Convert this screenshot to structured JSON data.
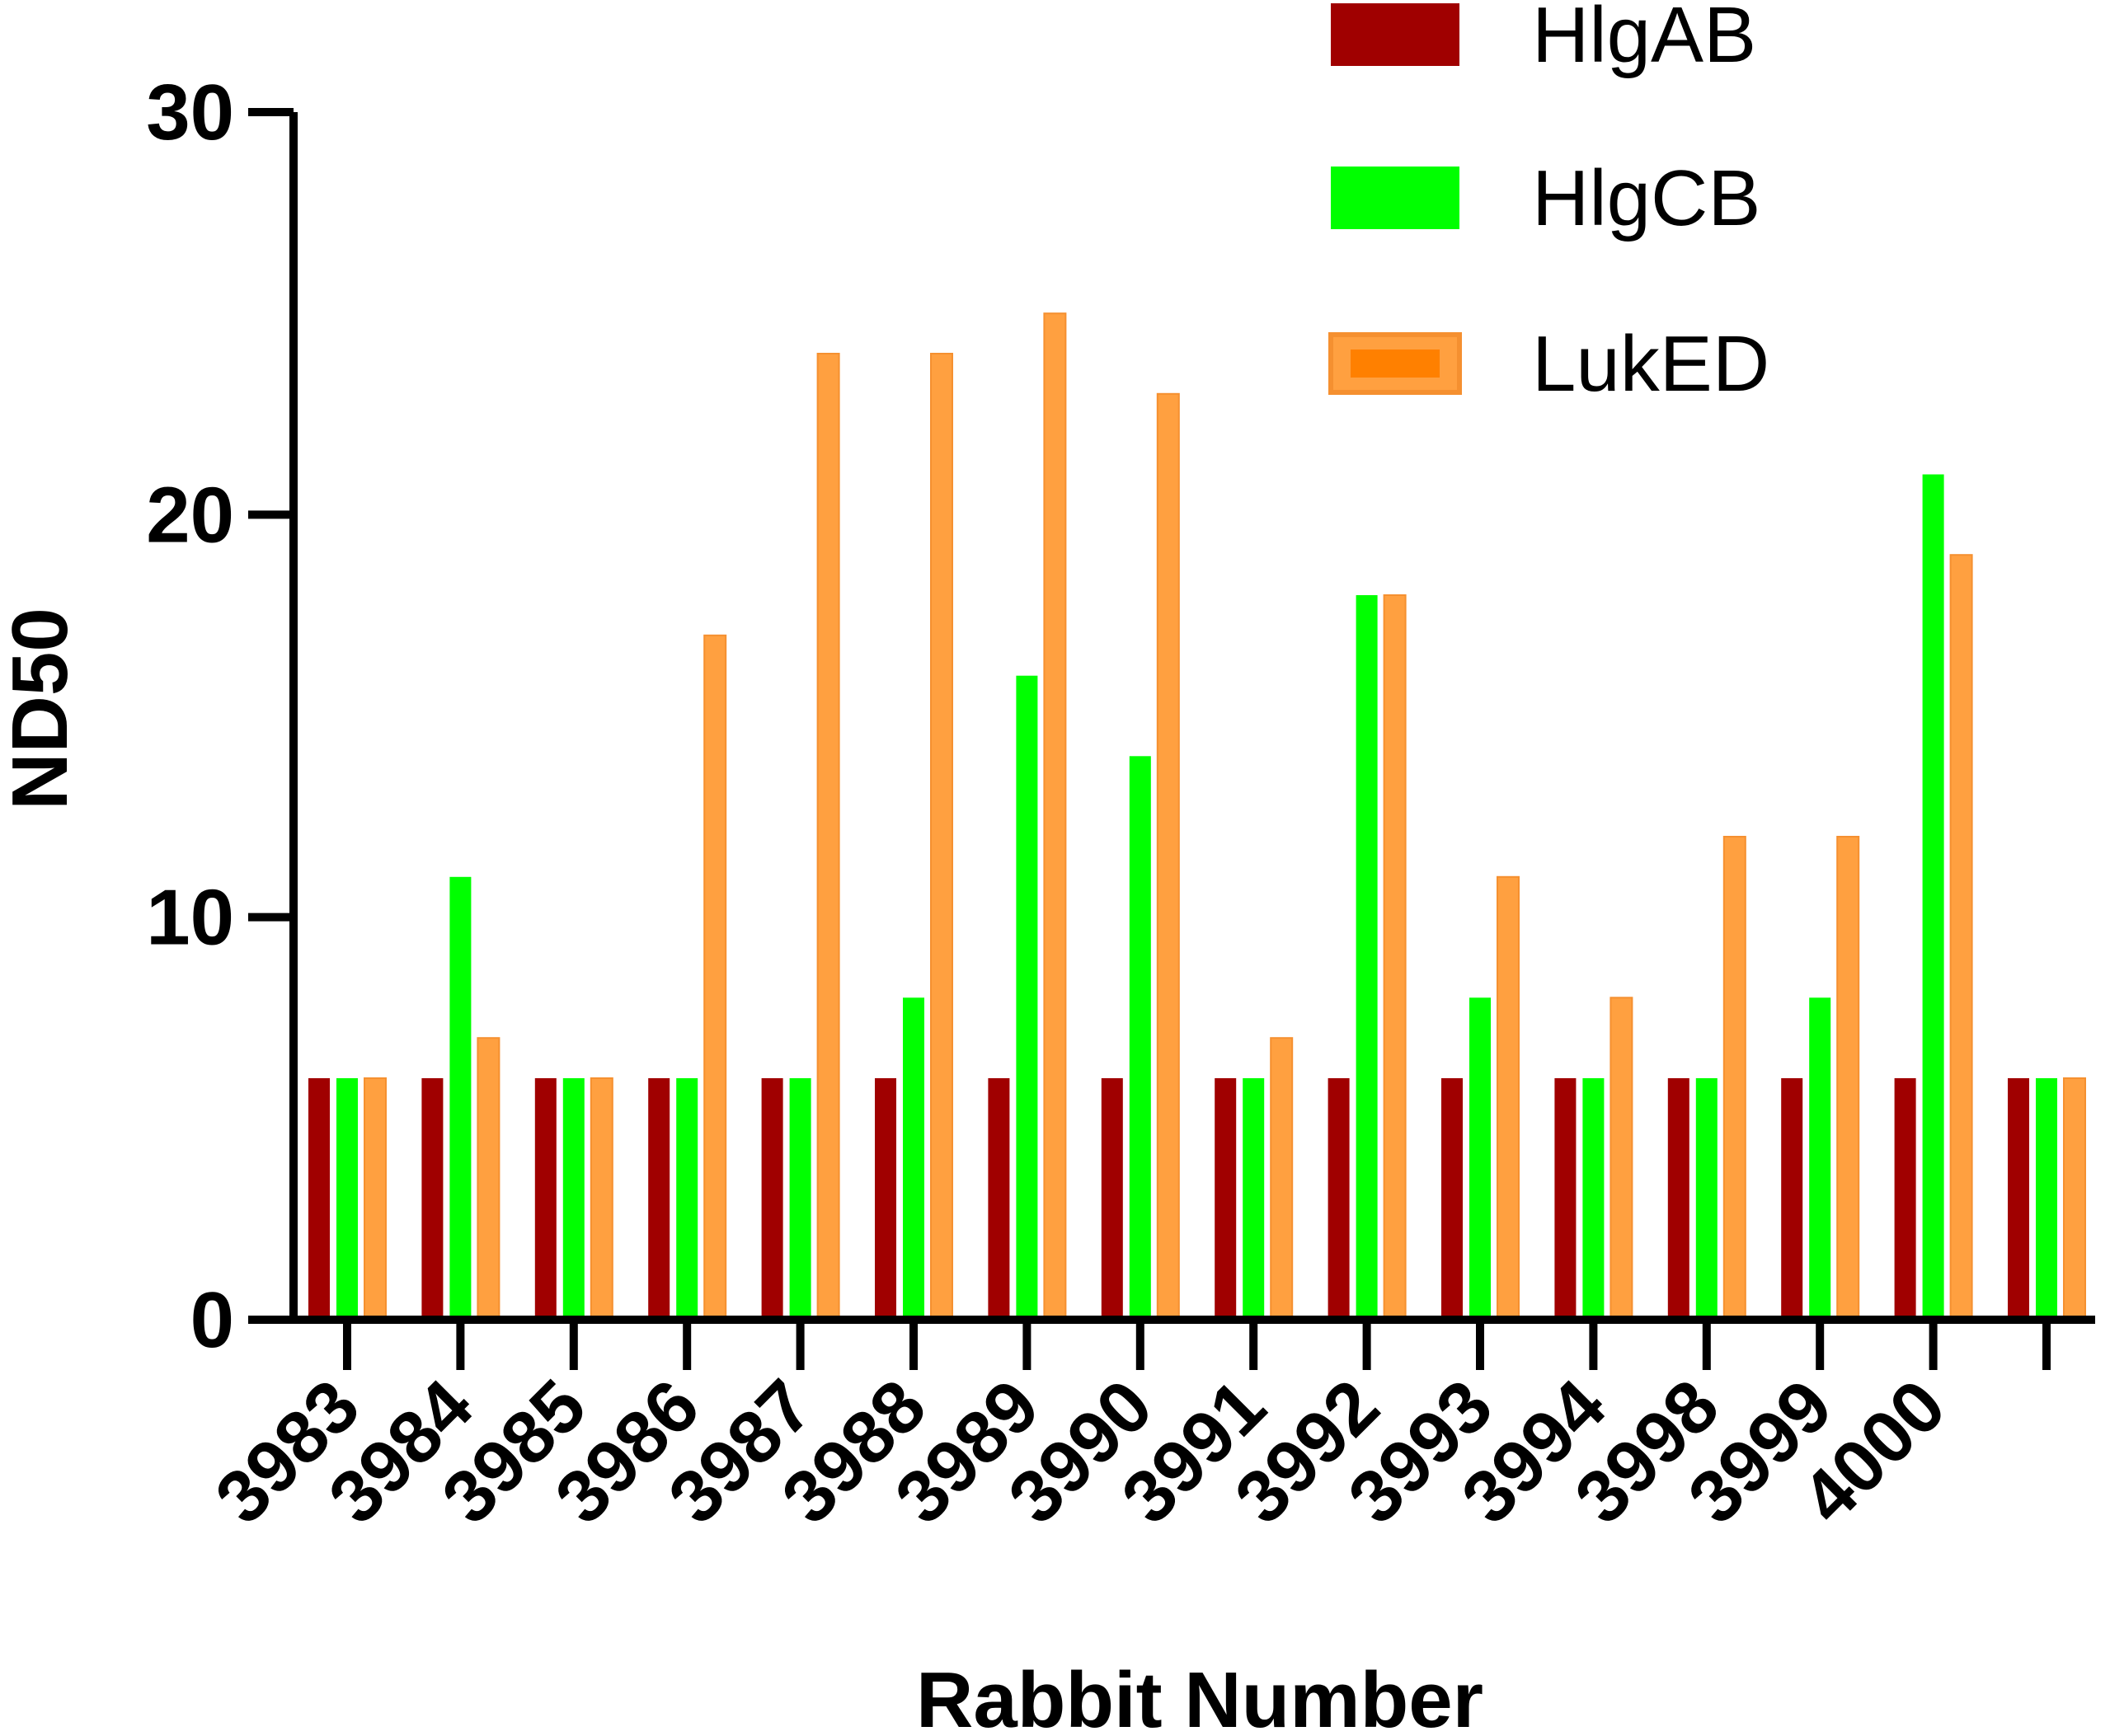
{
  "chart_data": {
    "type": "bar",
    "title": "",
    "xlabel": "Rabbit Number",
    "ylabel": "ND50",
    "ylim": [
      0,
      30
    ],
    "yticks": [
      "0",
      "10",
      "20",
      "30"
    ],
    "grid": false,
    "legend_position": "top-right",
    "categories": [
      "3983",
      "3984",
      "3985",
      "3986",
      "3987",
      "3988",
      "3989",
      "3990",
      "3991",
      "3992",
      "3993",
      "3994",
      "3998",
      "3999",
      "4000",
      ""
    ],
    "series": [
      {
        "name": "HlgAB",
        "color": "#a00000",
        "values": [
          6,
          6,
          6,
          6,
          6,
          6,
          6,
          6,
          6,
          6,
          6,
          6,
          6,
          6,
          6,
          6
        ]
      },
      {
        "name": "HlgCB",
        "color": "#00ff00",
        "values": [
          6,
          11,
          6,
          6,
          6,
          8,
          16,
          14,
          6,
          18,
          8,
          6,
          6,
          8,
          21,
          6
        ]
      },
      {
        "name": "LukED",
        "color": "#ffa040",
        "edge": "#f59030",
        "values": [
          6,
          7,
          6,
          17,
          24,
          24,
          25,
          23,
          7,
          18,
          11,
          8,
          12,
          12,
          19,
          6
        ]
      }
    ]
  }
}
